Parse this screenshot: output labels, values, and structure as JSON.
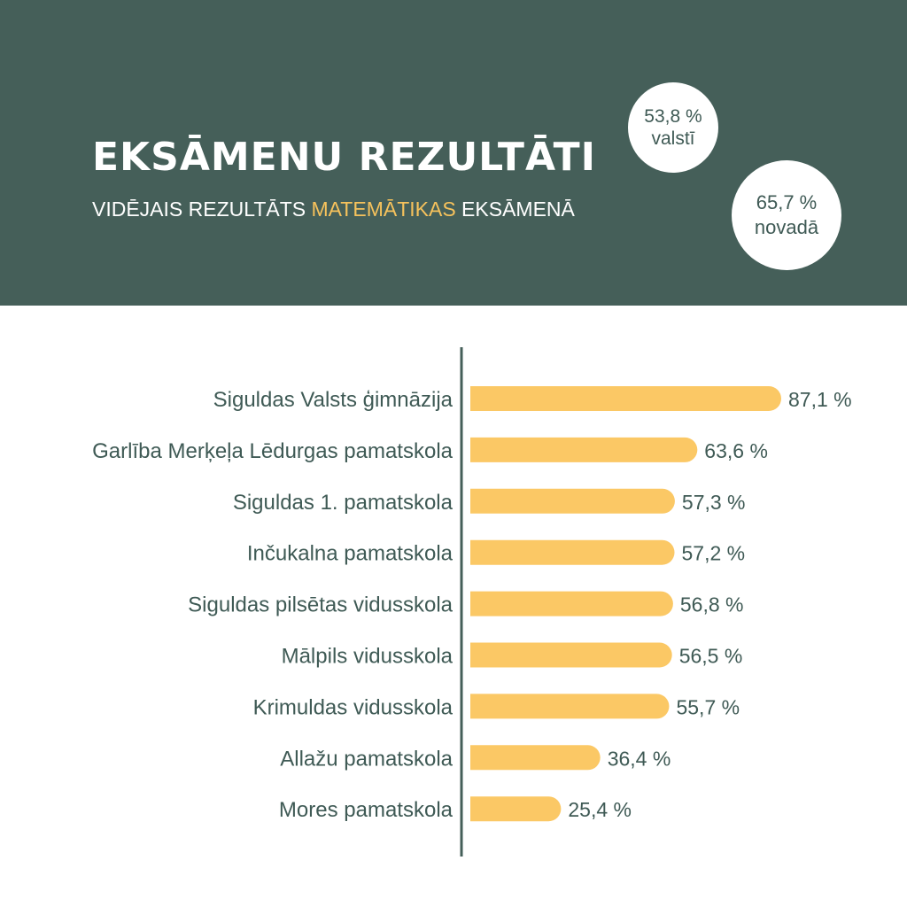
{
  "header": {
    "title": "EKSĀMENU REZULTĀTI",
    "subtitle_pre": "VIDĒJAIS REZULTĀTS ",
    "subtitle_highlight": "MATEMĀTIKAS",
    "subtitle_post": " EKSĀMENĀ",
    "background_color": "#455f59",
    "highlight_color": "#f6c25c"
  },
  "bubbles": [
    {
      "value": "53,8 %",
      "label": "valstī"
    },
    {
      "value": "65,7 %",
      "label": "novadā"
    }
  ],
  "chart_data": {
    "type": "bar",
    "orientation": "horizontal",
    "categories": [
      "Siguldas Valsts ģimnāzija",
      "Garlība Merķeļa Lēdurgas pamatskola",
      "Siguldas 1. pamatskola",
      "Inčukalna pamatskola",
      "Siguldas pilsētas vidusskola",
      "Mālpils vidusskola",
      "Krimuldas vidusskola",
      "Allažu pamatskola",
      "Mores pamatskola"
    ],
    "values": [
      87.1,
      63.6,
      57.3,
      57.2,
      56.8,
      56.5,
      55.7,
      36.4,
      25.4
    ],
    "value_labels": [
      "87,1 %",
      "63,6 %",
      "57,3 %",
      "57,2 %",
      "56,8 %",
      "56,5 %",
      "55,7 %",
      "36,4 %",
      "25,4 %"
    ],
    "title": "",
    "xlabel": "",
    "ylabel": "",
    "xlim": [
      0,
      100
    ],
    "grid": false,
    "bar_color": "#fbc865",
    "axis_color": "#455f59"
  }
}
